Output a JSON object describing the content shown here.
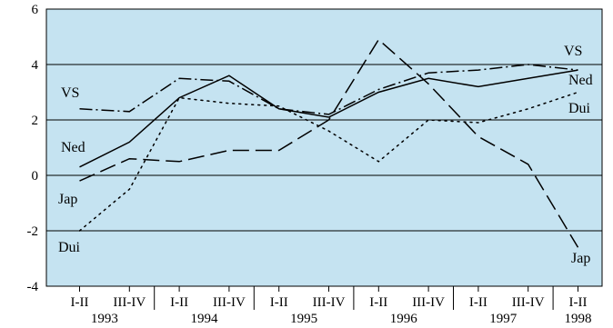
{
  "chart_data": {
    "type": "line",
    "background": "#c5e3f1",
    "x": [
      "1993 I-II",
      "1993 III-IV",
      "1994 I-II",
      "1994 III-IV",
      "1995 I-II",
      "1995 III-IV",
      "1996 I-II",
      "1996 III-IV",
      "1997 I-II",
      "1997 III-IV",
      "1998 I-II"
    ],
    "x_ticks": {
      "halves": [
        "I-II",
        "III-IV",
        "I-II",
        "III-IV",
        "I-II",
        "III-IV",
        "I-II",
        "III-IV",
        "I-II",
        "III-IV",
        "I-II"
      ],
      "years": [
        "1993",
        "1994",
        "1995",
        "1996",
        "1997",
        "1998"
      ]
    },
    "y_ticks": [
      "6",
      "4",
      "2",
      "0",
      "-2",
      "-4"
    ],
    "ylim": [
      -4,
      6
    ],
    "grid": true,
    "series": [
      {
        "name": "VS",
        "dash": "dashdot",
        "values": [
          2.4,
          2.3,
          3.5,
          3.4,
          2.4,
          2.2,
          3.1,
          3.7,
          3.8,
          4.0,
          3.8
        ]
      },
      {
        "name": "Ned",
        "dash": "solid",
        "values": [
          0.3,
          1.2,
          2.8,
          3.6,
          2.4,
          2.1,
          3.0,
          3.5,
          3.2,
          3.5,
          3.8
        ]
      },
      {
        "name": "Dui",
        "dash": "dotted",
        "values": [
          -2.0,
          -0.5,
          2.8,
          2.6,
          2.5,
          1.6,
          0.5,
          2.0,
          1.9,
          2.4,
          3.0
        ]
      },
      {
        "name": "Jap",
        "dash": "longdash",
        "values": [
          -0.2,
          0.6,
          0.5,
          0.9,
          0.9,
          2.0,
          4.9,
          3.3,
          1.4,
          0.4,
          -2.6
        ]
      }
    ],
    "labels": {
      "VS": "VS",
      "Ned": "Ned",
      "Dui": "Dui",
      "Jap": "Jap"
    }
  }
}
